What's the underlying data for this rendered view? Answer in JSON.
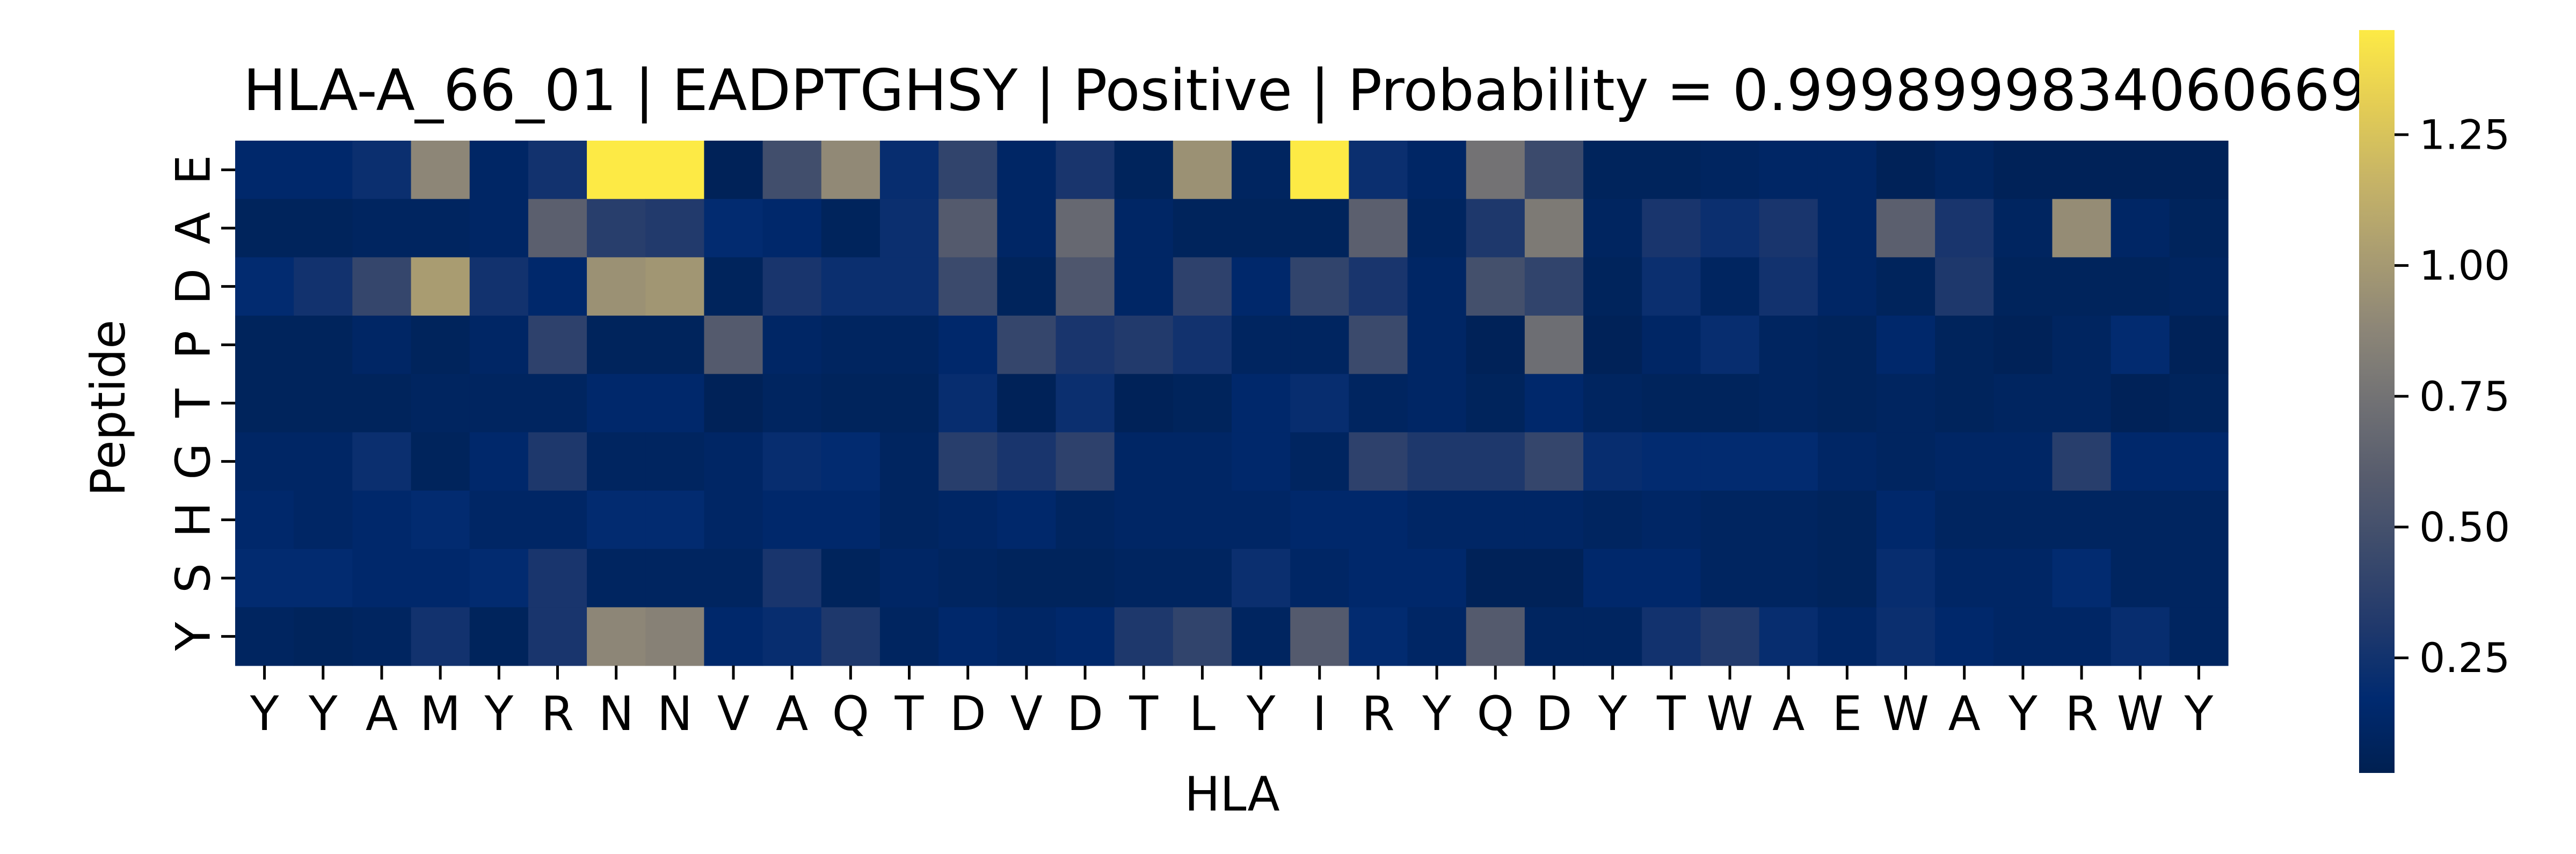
{
  "chart_data": {
    "type": "heatmap",
    "title": "HLA-A_66_01 | EADPTGHSY | Positive | Probability = 0.9998999834060669",
    "xlabel": "HLA",
    "ylabel": "Peptide",
    "x_categories": [
      "Y",
      "Y",
      "A",
      "M",
      "Y",
      "R",
      "N",
      "N",
      "V",
      "A",
      "Q",
      "T",
      "D",
      "V",
      "D",
      "T",
      "L",
      "Y",
      "I",
      "R",
      "Y",
      "Q",
      "D",
      "Y",
      "T",
      "W",
      "A",
      "E",
      "W",
      "A",
      "Y",
      "R",
      "W",
      "Y"
    ],
    "y_categories": [
      "E",
      "A",
      "D",
      "P",
      "T",
      "G",
      "H",
      "S",
      "Y"
    ],
    "colormap": "cividis",
    "vmin": 0.03,
    "vmax": 1.45,
    "colorbar_ticks": [
      0.25,
      0.5,
      0.75,
      1.0,
      1.25
    ],
    "colorbar_tick_labels": [
      "0.25",
      "0.50",
      "0.75",
      "1.00",
      "1.25"
    ],
    "values": [
      [
        0.15,
        0.15,
        0.22,
        0.88,
        0.12,
        0.25,
        1.45,
        1.45,
        0.06,
        0.48,
        0.9,
        0.2,
        0.4,
        0.12,
        0.28,
        0.08,
        0.95,
        0.1,
        1.45,
        0.22,
        0.12,
        0.75,
        0.45,
        0.08,
        0.08,
        0.1,
        0.12,
        0.12,
        0.06,
        0.1,
        0.06,
        0.06,
        0.06,
        0.06
      ],
      [
        0.08,
        0.08,
        0.1,
        0.1,
        0.12,
        0.62,
        0.35,
        0.32,
        0.18,
        0.15,
        0.08,
        0.22,
        0.58,
        0.12,
        0.68,
        0.12,
        0.08,
        0.08,
        0.08,
        0.62,
        0.1,
        0.3,
        0.8,
        0.1,
        0.28,
        0.22,
        0.28,
        0.12,
        0.62,
        0.28,
        0.1,
        0.92,
        0.12,
        0.08
      ],
      [
        0.18,
        0.25,
        0.42,
        1.02,
        0.25,
        0.15,
        0.95,
        0.98,
        0.08,
        0.28,
        0.22,
        0.22,
        0.45,
        0.08,
        0.55,
        0.12,
        0.38,
        0.15,
        0.4,
        0.28,
        0.12,
        0.5,
        0.4,
        0.08,
        0.22,
        0.1,
        0.25,
        0.12,
        0.08,
        0.3,
        0.08,
        0.08,
        0.08,
        0.1
      ],
      [
        0.08,
        0.08,
        0.12,
        0.08,
        0.12,
        0.38,
        0.08,
        0.08,
        0.58,
        0.12,
        0.1,
        0.1,
        0.15,
        0.42,
        0.28,
        0.32,
        0.25,
        0.1,
        0.1,
        0.45,
        0.12,
        0.06,
        0.72,
        0.06,
        0.12,
        0.2,
        0.1,
        0.08,
        0.15,
        0.08,
        0.06,
        0.1,
        0.18,
        0.06
      ],
      [
        0.08,
        0.08,
        0.08,
        0.1,
        0.1,
        0.1,
        0.15,
        0.15,
        0.06,
        0.1,
        0.08,
        0.08,
        0.2,
        0.06,
        0.22,
        0.06,
        0.08,
        0.15,
        0.2,
        0.1,
        0.12,
        0.08,
        0.15,
        0.1,
        0.08,
        0.08,
        0.1,
        0.08,
        0.1,
        0.08,
        0.1,
        0.1,
        0.06,
        0.08
      ],
      [
        0.12,
        0.12,
        0.22,
        0.08,
        0.15,
        0.3,
        0.1,
        0.1,
        0.12,
        0.2,
        0.18,
        0.1,
        0.35,
        0.28,
        0.38,
        0.12,
        0.12,
        0.15,
        0.1,
        0.38,
        0.3,
        0.3,
        0.42,
        0.2,
        0.18,
        0.18,
        0.18,
        0.12,
        0.1,
        0.12,
        0.12,
        0.35,
        0.15,
        0.15
      ],
      [
        0.15,
        0.12,
        0.15,
        0.18,
        0.12,
        0.12,
        0.18,
        0.18,
        0.12,
        0.15,
        0.15,
        0.1,
        0.12,
        0.15,
        0.1,
        0.12,
        0.12,
        0.12,
        0.15,
        0.15,
        0.12,
        0.12,
        0.12,
        0.1,
        0.12,
        0.1,
        0.1,
        0.08,
        0.15,
        0.1,
        0.1,
        0.1,
        0.1,
        0.1
      ],
      [
        0.18,
        0.18,
        0.15,
        0.15,
        0.18,
        0.28,
        0.1,
        0.1,
        0.1,
        0.28,
        0.08,
        0.12,
        0.1,
        0.08,
        0.08,
        0.1,
        0.1,
        0.22,
        0.12,
        0.15,
        0.15,
        0.06,
        0.06,
        0.15,
        0.15,
        0.1,
        0.1,
        0.08,
        0.2,
        0.12,
        0.12,
        0.18,
        0.1,
        0.1
      ],
      [
        0.1,
        0.08,
        0.1,
        0.25,
        0.08,
        0.28,
        0.88,
        0.85,
        0.15,
        0.2,
        0.3,
        0.1,
        0.15,
        0.12,
        0.15,
        0.3,
        0.4,
        0.1,
        0.58,
        0.18,
        0.12,
        0.58,
        0.1,
        0.1,
        0.25,
        0.32,
        0.2,
        0.12,
        0.22,
        0.15,
        0.12,
        0.12,
        0.2,
        0.1
      ]
    ]
  }
}
